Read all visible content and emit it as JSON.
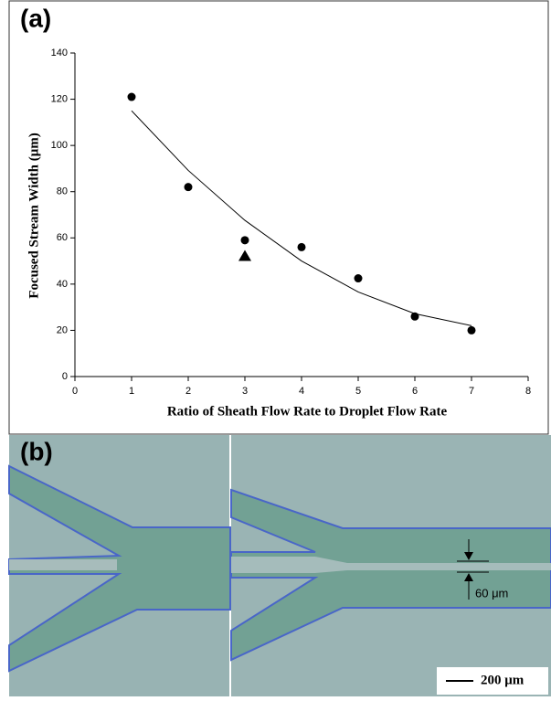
{
  "chart_data": {
    "type": "scatter",
    "xlabel": "Ratio of Sheath Flow Rate to Droplet Flow Rate",
    "ylabel": "Focused Stream Width (μm)",
    "xlim": [
      0,
      8
    ],
    "xticks": [
      0,
      1,
      2,
      3,
      4,
      5,
      6,
      7,
      8
    ],
    "ylim": [
      0,
      140
    ],
    "yticks": [
      0,
      20,
      40,
      60,
      80,
      100,
      120,
      140
    ],
    "series": [
      {
        "marker": "circle",
        "color": "#000000",
        "x": [
          1,
          2,
          3,
          4,
          5,
          6,
          7
        ],
        "values": [
          121,
          82,
          59,
          56,
          42.5,
          26,
          20
        ]
      },
      {
        "marker": "triangle",
        "color": "#000000",
        "x": [
          3
        ],
        "values": [
          52
        ]
      }
    ],
    "fit": {
      "color": "#000000",
      "x": [
        1,
        2,
        3,
        4,
        5,
        6,
        7
      ],
      "values": [
        115,
        89.2,
        67.6,
        50,
        36.6,
        27.2,
        22
      ]
    }
  },
  "panel_a_label": "(a)",
  "panel_b": {
    "label": "(b)",
    "annotation": "60 μm",
    "scale_bar": "200 μm"
  }
}
